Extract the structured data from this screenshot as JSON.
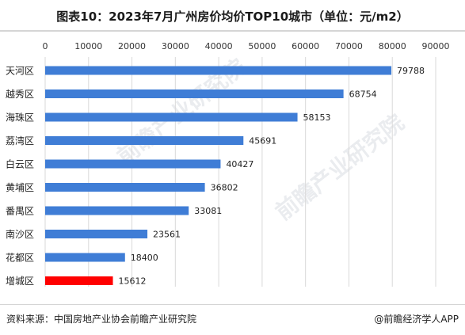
{
  "title": "图表10：2023年7月广州房价均价TOP10城市（单位：元/m2）",
  "source": "资料来源：中国房地产业协会前瞻产业研究院",
  "brand": "@前瞻经济学人APP",
  "watermark": "前瞻产业研究院",
  "colors": {
    "bar": "#3f7dd6",
    "highlight": "#ff0000",
    "grid": "#d9d9d9"
  },
  "chart_data": {
    "type": "bar",
    "orientation": "horizontal",
    "categories": [
      "天河区",
      "越秀区",
      "海珠区",
      "荔湾区",
      "白云区",
      "黄埔区",
      "番禺区",
      "南沙区",
      "花都区",
      "增城区"
    ],
    "values": [
      79788,
      68754,
      58153,
      45691,
      40427,
      36802,
      33081,
      23561,
      18400,
      15612
    ],
    "highlight_index": 9,
    "xticks": [
      0,
      10000,
      20000,
      30000,
      40000,
      50000,
      60000,
      70000,
      80000,
      90000
    ],
    "xlim": [
      0,
      90000
    ],
    "axis_position": "top",
    "grid": true
  }
}
